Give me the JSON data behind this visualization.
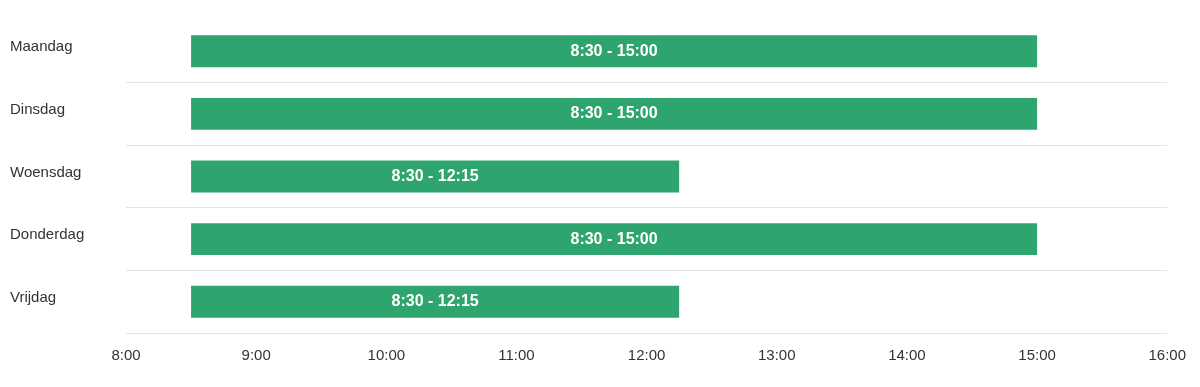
{
  "chart_data": {
    "type": "bar",
    "orientation": "horizontal",
    "categories": [
      "Maandag",
      "Dinsdag",
      "Woensdag",
      "Donderdag",
      "Vrijdag"
    ],
    "base": [
      8.5,
      8.5,
      8.5,
      8.5,
      8.5
    ],
    "values": [
      6.5,
      6.5,
      3.75,
      6.5,
      3.75
    ],
    "value_labels": [
      "8:30 - 15:00",
      "8:30 - 15:00",
      "8:30 - 12:15",
      "8:30 - 15:00",
      "8:30 - 12:15"
    ],
    "color": "#2ea56e",
    "xlim": [
      8,
      16
    ],
    "xticks": [
      {
        "value": 8,
        "label": "8:00"
      },
      {
        "value": 9,
        "label": "9:00"
      },
      {
        "value": 10,
        "label": "10:00"
      },
      {
        "value": 11,
        "label": "11:00"
      },
      {
        "value": 12,
        "label": "12:00"
      },
      {
        "value": 13,
        "label": "13:00"
      },
      {
        "value": 14,
        "label": "14:00"
      },
      {
        "value": 15,
        "label": "15:00"
      },
      {
        "value": 16,
        "label": "16:00"
      }
    ],
    "grid": "y",
    "legend": false
  }
}
